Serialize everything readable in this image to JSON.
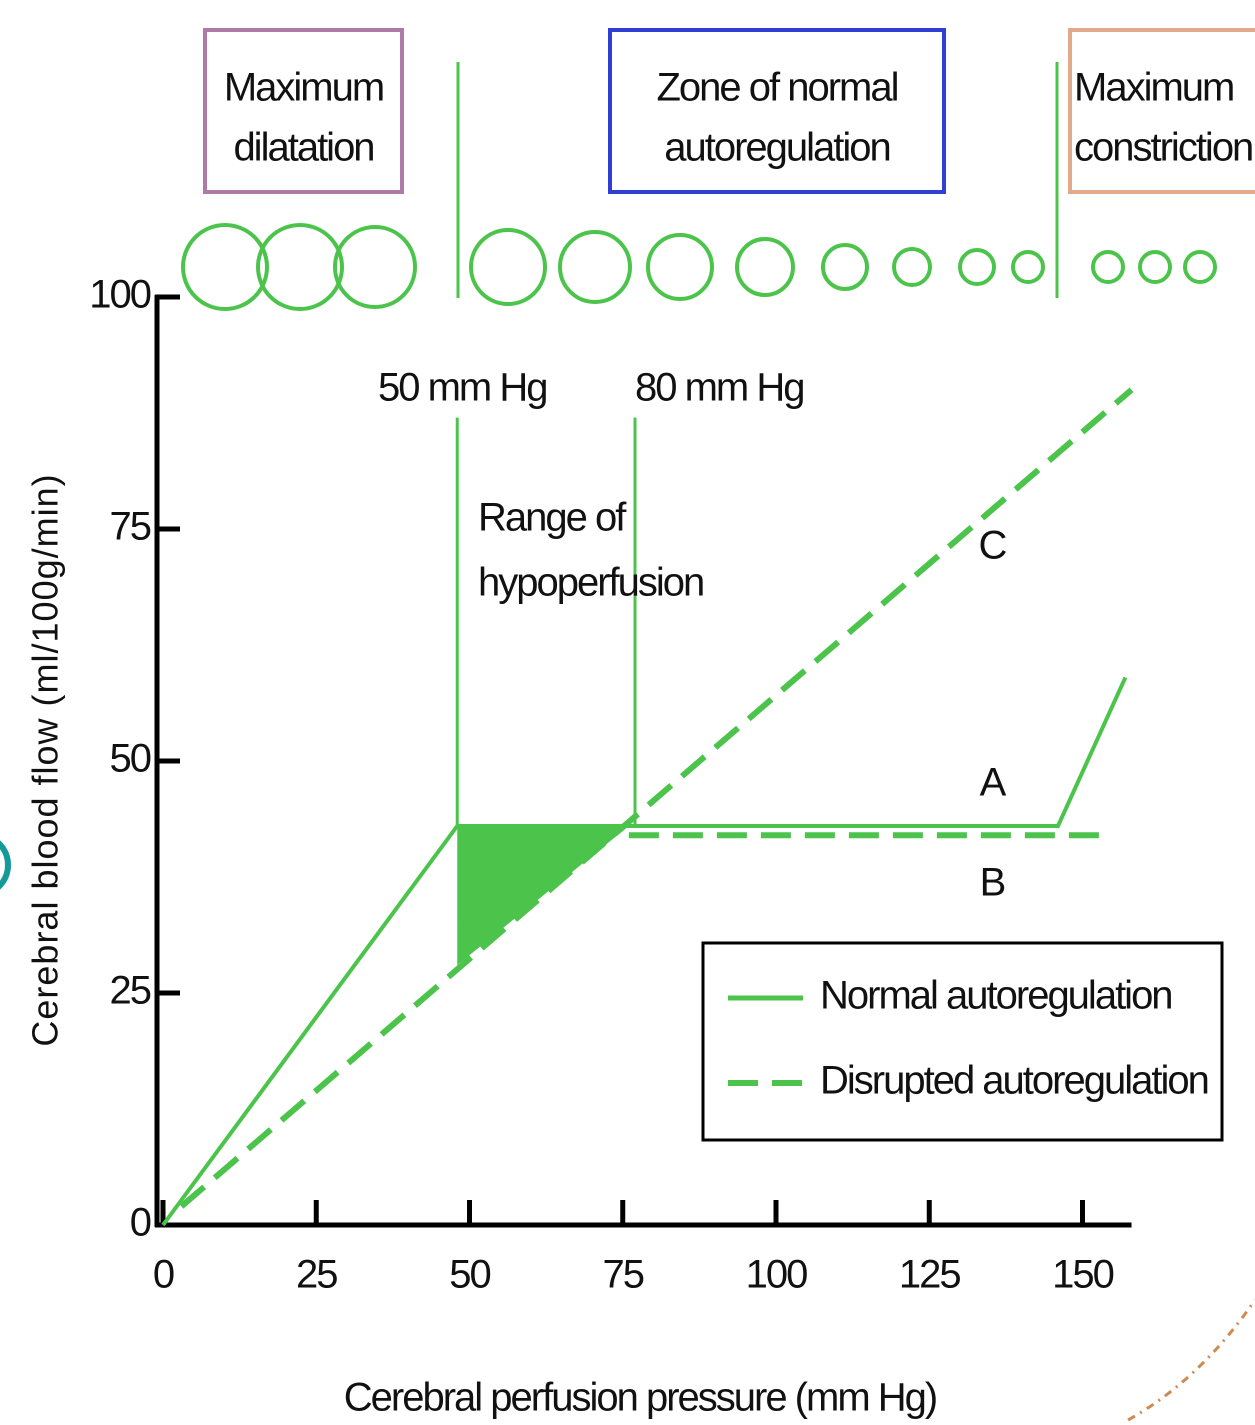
{
  "chart_data": {
    "type": "line",
    "zones": [
      {
        "lines": [
          "Maximum",
          "dilatation"
        ],
        "color": "#b07aa8"
      },
      {
        "lines": [
          "Zone of normal",
          "autoregulation"
        ],
        "color": "#2f3fd6"
      },
      {
        "lines": [
          "Maximum",
          "constriction"
        ],
        "color": "#e2a98a"
      }
    ],
    "xlabel": "Cerebral perfusion pressure (mm Hg)",
    "ylabel": "Cerebral blood flow (ml/100g/min)",
    "xlim": [
      0,
      158
    ],
    "ylim": [
      0,
      100
    ],
    "xticks": [
      0,
      25,
      50,
      75,
      100,
      125,
      150
    ],
    "yticks": [
      0,
      25,
      50,
      75,
      100
    ],
    "series": [
      {
        "name": "Normal autoregulation",
        "label": "A",
        "color": "#4cc44c",
        "dash": false,
        "x": [
          0,
          48,
          146,
          157
        ],
        "values": [
          0,
          43,
          43,
          59
        ]
      },
      {
        "name": "Disrupted autoregulation",
        "label": "C",
        "color": "#4cc44c",
        "dash": true,
        "x": [
          3,
          158
        ],
        "values": [
          2,
          90
        ]
      },
      {
        "label": "B",
        "color": "#4cc44c",
        "dash": true,
        "x": [
          76,
          153
        ],
        "values": [
          42,
          42
        ]
      }
    ],
    "shaded_region": {
      "color": "#4cc44c",
      "x": [
        48,
        76,
        48
      ],
      "values": [
        43,
        43,
        28
      ]
    },
    "reference_lines": [
      {
        "x": 48,
        "values": [
          43,
          87
        ],
        "label": "50 mm Hg"
      },
      {
        "x": 77,
        "values": [
          43,
          87
        ],
        "label": "80 mm Hg"
      }
    ],
    "annotation": [
      "Range of",
      "hypoperfusion"
    ],
    "legend": "lower right"
  }
}
